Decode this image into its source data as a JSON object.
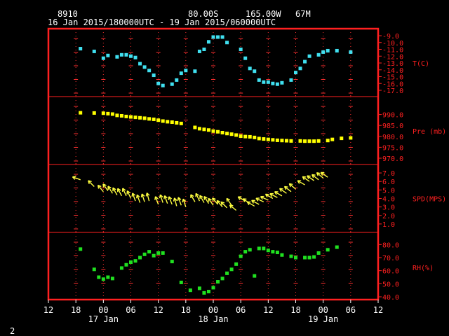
{
  "header": {
    "station_id": "8910",
    "latitude": "80.00S",
    "longitude": "165.00W",
    "elevation": "67M",
    "period": "16 Jan 2015/180000UTC - 19 Jan 2015/060000UTC"
  },
  "page_number": "2",
  "colors": {
    "frame": "#ff2020",
    "grid": "#ff3030",
    "temp": "#40e0f0",
    "pres": "#ffff00",
    "wind": "#ffff40",
    "rh": "#20e020",
    "text": "#ffffff"
  },
  "chart_data": {
    "type": "scatter",
    "x_axis": {
      "unit": "hours since 16 Jan 2015 12UTC",
      "range": [
        0,
        72
      ],
      "tick_values": [
        0,
        6,
        12,
        18,
        24,
        30,
        36,
        42,
        48,
        54,
        60,
        66,
        72
      ],
      "tick_labels": [
        "12",
        "18",
        "00",
        "06",
        "12",
        "18",
        "00",
        "06",
        "12",
        "18",
        "00",
        "06",
        "12"
      ],
      "day_labels": [
        {
          "at": 12,
          "text": "17 Jan"
        },
        {
          "at": 36,
          "text": "18 Jan"
        },
        {
          "at": 60,
          "text": "19 Jan"
        }
      ]
    },
    "panels": [
      {
        "id": "temp",
        "label": "T(C)",
        "ylim": [
          -17,
          -9
        ],
        "tick_values": [
          -9,
          -10,
          -11,
          -12,
          -13,
          -14,
          -15,
          -16,
          -17
        ],
        "tick_labels": [
          "-9.0",
          "-10.0",
          "-11.0",
          "-12.0",
          "-13.0",
          "-14.0",
          "-15.0",
          "-16.0",
          "-17.0"
        ],
        "x": [
          7,
          10,
          12,
          13,
          15,
          16,
          17,
          18,
          19,
          20,
          21,
          22,
          23,
          24,
          25,
          27,
          28,
          29,
          30,
          32,
          33,
          34,
          35,
          36,
          37,
          38,
          39,
          42,
          43,
          44,
          45,
          46,
          47,
          48,
          49,
          50,
          51,
          53,
          54,
          55,
          56,
          57,
          59,
          60,
          61,
          63,
          66
        ],
        "y": [
          -10.9,
          -11.3,
          -12.3,
          -11.9,
          -12.1,
          -11.8,
          -11.8,
          -12.0,
          -12.2,
          -13.1,
          -13.6,
          -14.1,
          -14.8,
          -16.0,
          -16.3,
          -16.1,
          -15.5,
          -14.5,
          -14.1,
          -14.2,
          -11.3,
          -11.0,
          -9.9,
          -9.2,
          -9.2,
          -9.2,
          -10.0,
          -11.0,
          -12.3,
          -13.8,
          -14.2,
          -15.5,
          -15.8,
          -15.8,
          -16.0,
          -16.1,
          -15.9,
          -15.5,
          -14.4,
          -13.8,
          -12.8,
          -12.0,
          -11.8,
          -11.4,
          -11.2,
          -11.2,
          -11.4
        ]
      },
      {
        "id": "pres",
        "label": "Pre (mb)",
        "ylim": [
          970,
          995
        ],
        "tick_values": [
          970,
          975,
          980,
          985,
          990
        ],
        "tick_labels": [
          "970.0",
          "975.0",
          "980.0",
          "985.0",
          "990.0"
        ],
        "x": [
          7,
          10,
          12,
          13,
          14,
          15,
          16,
          17,
          18,
          19,
          20,
          21,
          22,
          23,
          24,
          25,
          26,
          27,
          28,
          29,
          32,
          33,
          34,
          35,
          36,
          37,
          38,
          39,
          40,
          41,
          42,
          43,
          44,
          45,
          46,
          47,
          48,
          49,
          50,
          51,
          52,
          53,
          55,
          56,
          57,
          58,
          59,
          61,
          62,
          64,
          66
        ],
        "y": [
          990.8,
          990.7,
          990.6,
          990.4,
          990.2,
          989.6,
          989.4,
          989.1,
          988.9,
          988.7,
          988.5,
          988.3,
          988.0,
          987.8,
          987.4,
          987.0,
          986.7,
          986.5,
          986.2,
          985.9,
          984.1,
          983.5,
          983.2,
          982.9,
          982.4,
          982.1,
          981.7,
          981.3,
          981.0,
          980.6,
          980.1,
          979.9,
          979.8,
          979.5,
          979.0,
          978.8,
          978.6,
          978.4,
          978.2,
          978.1,
          978.0,
          977.9,
          977.9,
          977.8,
          977.8,
          977.8,
          977.9,
          978.1,
          978.6,
          979.1,
          979.3
        ]
      },
      {
        "id": "wind",
        "label": "SPD(MPS)",
        "ylim": [
          0.5,
          7.5
        ],
        "tick_values": [
          1,
          2,
          3,
          4,
          5,
          6,
          7
        ],
        "tick_labels": [
          "1.0",
          "2.0",
          "3.0",
          "4.0",
          "5.0",
          "6.0",
          "7.0"
        ],
        "x": [
          7,
          10,
          12,
          13,
          14,
          15,
          16,
          17,
          18,
          19,
          20,
          21,
          22,
          24,
          25,
          26,
          27,
          28,
          29,
          30,
          32,
          33,
          34,
          35,
          36,
          37,
          38,
          39,
          40,
          41,
          43,
          44,
          45,
          46,
          47,
          48,
          49,
          50,
          51,
          52,
          53,
          54,
          56,
          57,
          58,
          59,
          60,
          61
        ],
        "y": [
          6.2,
          5.4,
          4.8,
          4.9,
          4.6,
          4.4,
          4.3,
          4.3,
          4.0,
          3.7,
          3.5,
          3.6,
          3.7,
          3.3,
          3.5,
          3.4,
          3.3,
          3.1,
          3.2,
          3.0,
          3.6,
          3.7,
          3.5,
          3.4,
          3.2,
          3.3,
          3.0,
          2.9,
          3.2,
          2.6,
          3.7,
          3.4,
          3.1,
          3.3,
          3.6,
          3.8,
          4.0,
          4.1,
          4.3,
          4.6,
          4.8,
          5.1,
          5.6,
          6.0,
          6.1,
          6.2,
          6.4,
          6.5
        ],
        "dir": [
          110,
          135,
          140,
          145,
          148,
          150,
          152,
          155,
          155,
          160,
          160,
          162,
          165,
          160,
          162,
          160,
          158,
          165,
          160,
          162,
          150,
          155,
          150,
          148,
          145,
          140,
          140,
          135,
          145,
          130,
          120,
          125,
          120,
          118,
          115,
          115,
          120,
          118,
          120,
          125,
          128,
          130,
          120,
          125,
          125,
          128,
          130,
          125
        ]
      },
      {
        "id": "rh",
        "label": "RH(%)",
        "ylim": [
          40,
          85
        ],
        "tick_values": [
          40,
          50,
          60,
          70,
          80
        ],
        "tick_labels": [
          "40.0",
          "50.0",
          "60.0",
          "70.0",
          "80.0"
        ],
        "x": [
          7,
          10,
          11,
          12,
          13,
          14,
          16,
          17,
          18,
          19,
          20,
          21,
          22,
          23,
          24,
          25,
          27,
          29,
          31,
          33,
          34,
          35,
          36,
          37,
          38,
          39,
          40,
          41,
          42,
          43,
          44,
          45,
          46,
          47,
          48,
          49,
          50,
          51,
          53,
          54,
          56,
          57,
          58,
          59,
          61,
          63
        ],
        "y": [
          76.5,
          61.0,
          55.0,
          53.5,
          55.0,
          54.0,
          62.0,
          64.5,
          66.5,
          67.5,
          70.0,
          72.5,
          74.5,
          71.5,
          73.5,
          73.5,
          67.0,
          51.0,
          45.0,
          46.5,
          43.0,
          44.0,
          47.0,
          51.5,
          54.0,
          58.0,
          61.0,
          65.0,
          71.0,
          74.5,
          76.0,
          56.0,
          77.0,
          77.0,
          75.5,
          74.5,
          74.0,
          72.0,
          71.0,
          70.0,
          70.0,
          70.0,
          70.5,
          73.5,
          76.0,
          78.0
        ]
      }
    ]
  }
}
